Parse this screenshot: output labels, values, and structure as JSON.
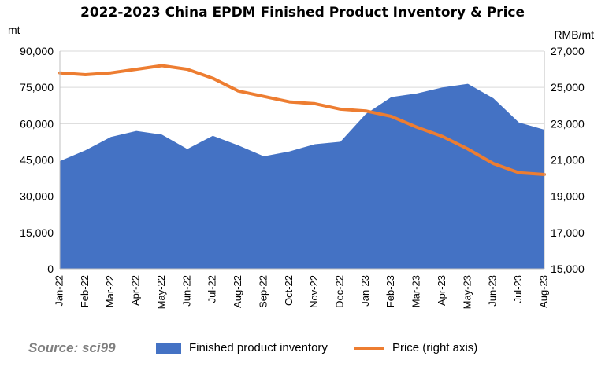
{
  "chart_data": {
    "type": "area",
    "title": "2022-2023  China EPDM Finished Product Inventory & Price",
    "ylabel": "mt",
    "y2label": "RMB/mt",
    "categories": [
      "Jan-22",
      "Feb-22",
      "Mar-22",
      "Apr-22",
      "May-22",
      "Jun-22",
      "Jul-22",
      "Aug-22",
      "Sep-22",
      "Oct-22",
      "Nov-22",
      "Dec-22",
      "Jan-23",
      "Feb-23",
      "Mar-23",
      "Apr-23",
      "May-23",
      "Jun-23",
      "Jul-23",
      "Aug-23"
    ],
    "ylim": [
      0,
      90000
    ],
    "yticks": [
      "0",
      "15,000",
      "30,000",
      "45,000",
      "60,000",
      "75,000",
      "90,000"
    ],
    "y2lim": [
      15000,
      27000
    ],
    "y2ticks": [
      "15,000",
      "17,000",
      "19,000",
      "21,000",
      "23,000",
      "25,000",
      "27,000"
    ],
    "grid": true,
    "legend_position": "bottom",
    "series": [
      {
        "name": "Finished product inventory",
        "type": "area",
        "axis": "left",
        "color": "#4472c4",
        "values": [
          44500,
          49000,
          54500,
          57000,
          55500,
          49500,
          55000,
          51000,
          46500,
          48500,
          51500,
          52500,
          64000,
          71000,
          72500,
          75000,
          76500,
          70500,
          60500,
          57500
        ]
      },
      {
        "name": "Price (right axis)",
        "type": "line",
        "axis": "right",
        "color": "#ed7d31",
        "values": [
          25800,
          25700,
          25800,
          26000,
          26200,
          26000,
          25500,
          24800,
          24500,
          24200,
          24100,
          23800,
          23700,
          23400,
          22800,
          22300,
          21600,
          20800,
          20300,
          20200
        ]
      }
    ]
  },
  "source": "Source: sci99"
}
